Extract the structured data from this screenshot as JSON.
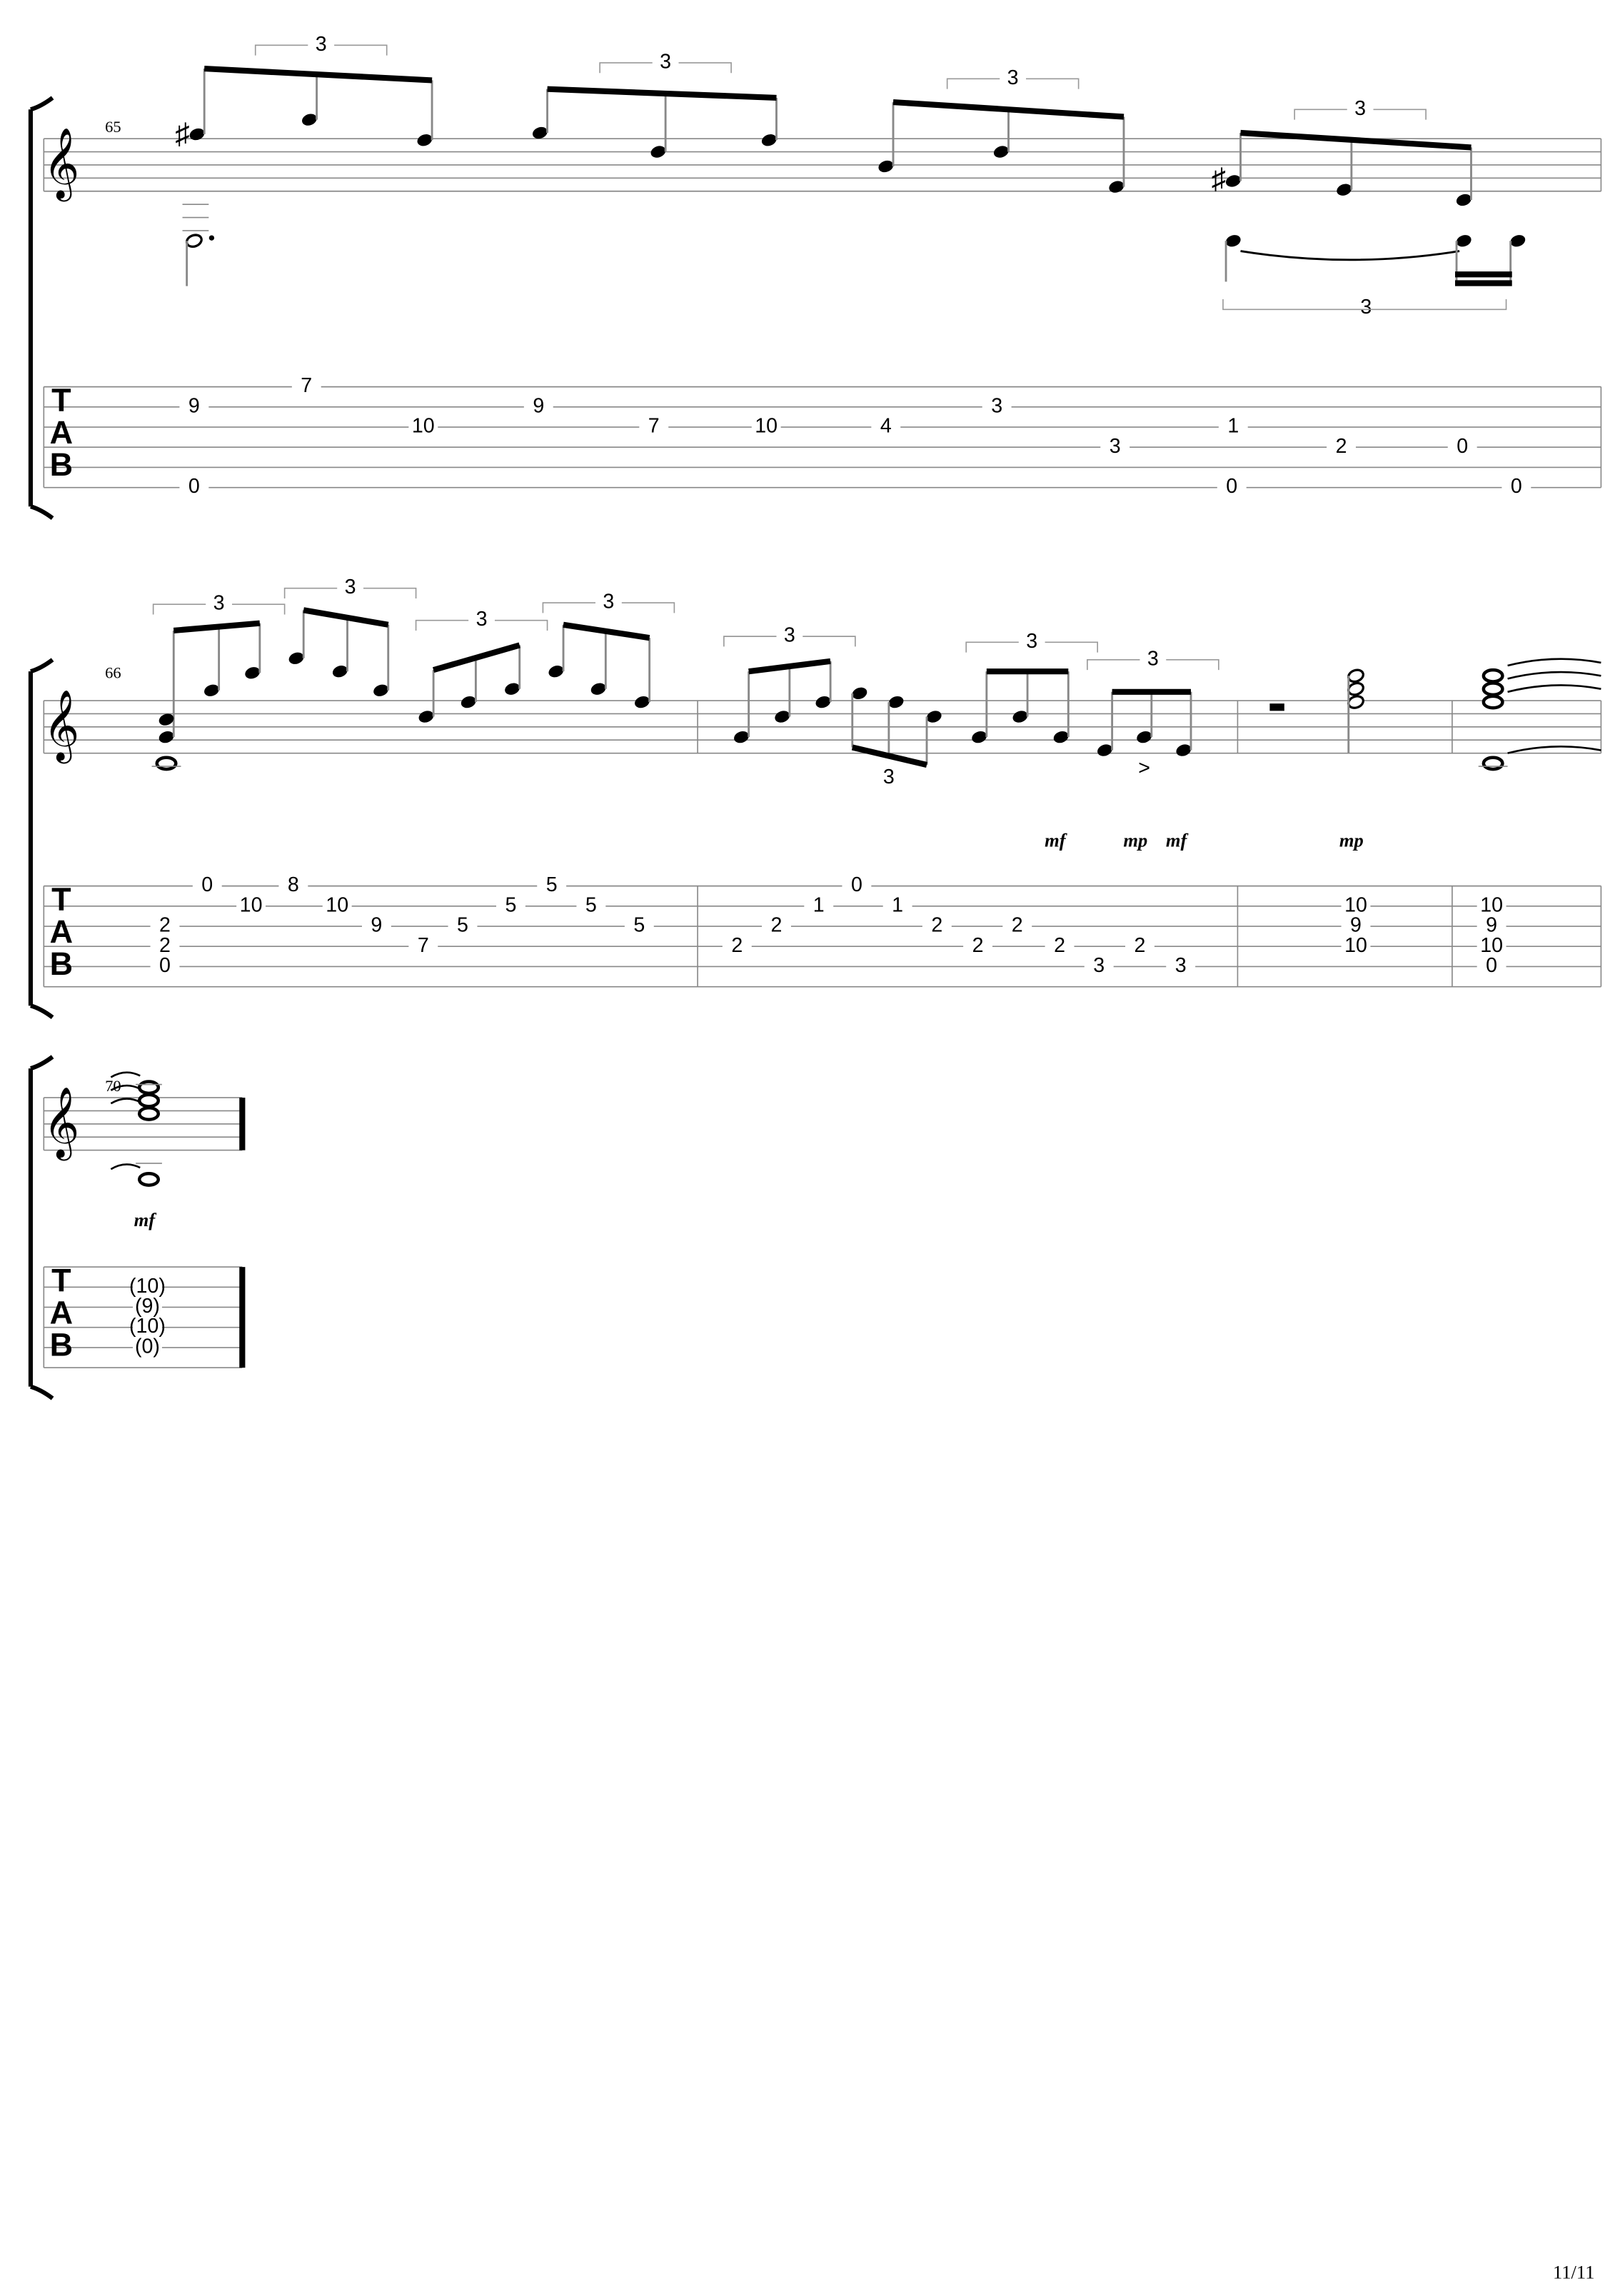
{
  "systems": [
    {
      "measure_number": "65",
      "tuplets": [
        "3",
        "3",
        "3",
        "3",
        "3"
      ],
      "tab_clef": [
        "T",
        "A",
        "B"
      ],
      "tab": [
        "9",
        "7",
        "10",
        "9",
        "7",
        "10",
        "4",
        "3",
        "3",
        "1",
        "2",
        "0",
        "0",
        "0",
        "0"
      ]
    },
    {
      "measure_number": "66",
      "tuplets": [
        "3",
        "3",
        "3",
        "3",
        "3",
        "3",
        "3",
        "3"
      ],
      "tab_clef": [
        "T",
        "A",
        "B"
      ],
      "tab": [
        "0",
        "10",
        "8",
        "10",
        "9",
        "5",
        "7",
        "5",
        "5",
        "5",
        "5",
        "2",
        "2",
        "0",
        "2",
        "2",
        "0",
        "1",
        "1",
        "2",
        "2",
        "2",
        "2",
        "3",
        "2",
        "3",
        "10",
        "9",
        "10",
        "10",
        "9",
        "10",
        "0"
      ],
      "dynamics": [
        "mf",
        "mp",
        "mf",
        "mp"
      ]
    },
    {
      "measure_number": "70",
      "tab_clef": [
        "T",
        "A",
        "B"
      ],
      "tab": [
        "(10)",
        "(9)",
        "(10)",
        "(0)"
      ],
      "dynamics": [
        "mf"
      ]
    }
  ],
  "page_number": "11/11"
}
